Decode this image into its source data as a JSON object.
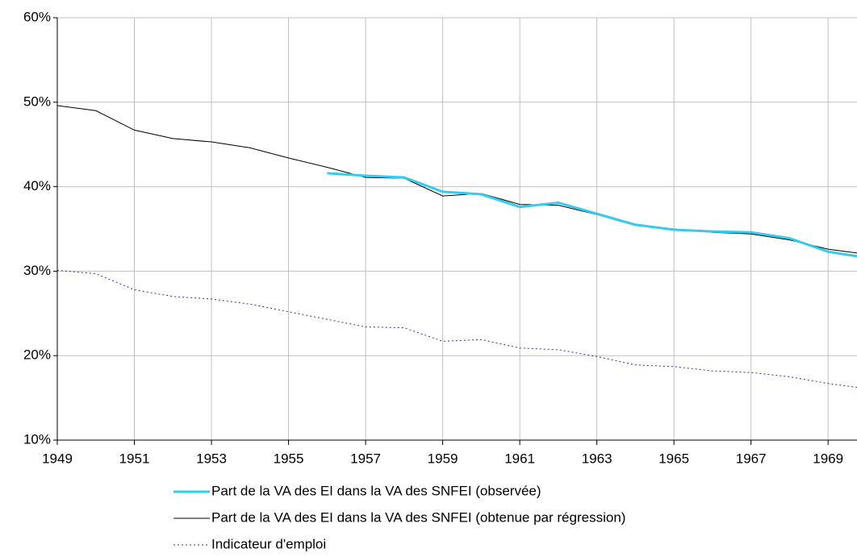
{
  "chart_data": {
    "type": "line",
    "x": [
      1949,
      1950,
      1951,
      1952,
      1953,
      1954,
      1955,
      1956,
      1957,
      1958,
      1959,
      1960,
      1961,
      1962,
      1963,
      1964,
      1965,
      1966,
      1967,
      1968,
      1969,
      1970
    ],
    "xlim": [
      1949,
      1969.75
    ],
    "xticks": [
      1949,
      1951,
      1953,
      1955,
      1957,
      1959,
      1961,
      1963,
      1965,
      1967,
      1969
    ],
    "ylim": [
      10,
      60
    ],
    "yticks": [
      {
        "value": 10,
        "label": "10%"
      },
      {
        "value": 20,
        "label": "20%"
      },
      {
        "value": 30,
        "label": "30%"
      },
      {
        "value": 40,
        "label": "40%"
      },
      {
        "value": 50,
        "label": "50%"
      },
      {
        "value": 60,
        "label": "60%"
      }
    ],
    "grid": true,
    "legend": "bottom",
    "series": [
      {
        "name": "Part de la VA des EI dans la VA des SNFEI (observée)",
        "color": "#33ccee",
        "style": "solid",
        "width": 3,
        "values": [
          null,
          null,
          null,
          null,
          null,
          null,
          null,
          41.6,
          41.3,
          41.1,
          39.4,
          39.1,
          37.6,
          38.1,
          36.8,
          35.5,
          34.9,
          34.7,
          34.6,
          33.9,
          32.3,
          31.6
        ]
      },
      {
        "name": "Part de la VA des EI dans la VA des SNFEI (obtenue par régression)",
        "color": "#000000",
        "style": "solid",
        "width": 1,
        "values": [
          49.6,
          49.0,
          46.7,
          45.7,
          45.3,
          44.6,
          43.4,
          42.3,
          41.1,
          41.0,
          38.9,
          39.2,
          37.9,
          37.8,
          36.7,
          35.4,
          35.0,
          34.6,
          34.4,
          33.7,
          32.6,
          32.0
        ]
      },
      {
        "name": "Indicateur d'emploi",
        "color": "#333399",
        "style": "dotted",
        "width": 1,
        "values": [
          30.1,
          29.7,
          27.8,
          27.0,
          26.7,
          26.1,
          25.2,
          24.3,
          23.4,
          23.3,
          21.7,
          21.9,
          20.9,
          20.7,
          19.9,
          18.9,
          18.7,
          18.2,
          18.0,
          17.5,
          16.7,
          16.1
        ]
      }
    ]
  }
}
